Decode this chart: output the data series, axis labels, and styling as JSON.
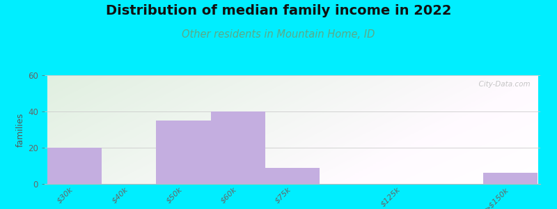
{
  "title": "Distribution of median family income in 2022",
  "subtitle": "Other residents in Mountain Home, ID",
  "ylabel": "families",
  "categories": [
    "$30k",
    "$40k",
    "$50k",
    "$60k",
    "$75k",
    "$125k",
    ">$150k"
  ],
  "values": [
    20,
    0,
    35,
    40,
    9,
    0,
    6
  ],
  "bar_color": "#c4aee0",
  "background_outer": "#00eeff",
  "plot_bg_left": "#d6ecd6",
  "plot_bg_right": "#f5f5ee",
  "title_fontsize": 14,
  "subtitle_fontsize": 10.5,
  "subtitle_color": "#5aaa88",
  "ylabel_color": "#555555",
  "tick_color": "#666666",
  "watermark": "  City-Data.com",
  "ylim": [
    0,
    60
  ],
  "yticks": [
    0,
    20,
    40,
    60
  ],
  "bar_positions": [
    0,
    1,
    2,
    3,
    4,
    6,
    8
  ],
  "bar_width": 1.0
}
